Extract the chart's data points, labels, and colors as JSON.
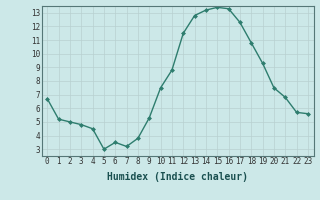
{
  "x": [
    0,
    1,
    2,
    3,
    4,
    5,
    6,
    7,
    8,
    9,
    10,
    11,
    12,
    13,
    14,
    15,
    16,
    17,
    18,
    19,
    20,
    21,
    22,
    23
  ],
  "y": [
    6.7,
    5.2,
    5.0,
    4.8,
    4.5,
    3.0,
    3.5,
    3.2,
    3.8,
    5.3,
    7.5,
    8.8,
    11.5,
    12.8,
    13.2,
    13.4,
    13.3,
    12.3,
    10.8,
    9.3,
    7.5,
    6.8,
    5.7,
    5.6
  ],
  "xlabel": "Humidex (Indice chaleur)",
  "xlim": [
    -0.5,
    23.5
  ],
  "ylim": [
    2.5,
    13.5
  ],
  "yticks": [
    3,
    4,
    5,
    6,
    7,
    8,
    9,
    10,
    11,
    12,
    13
  ],
  "xticks": [
    0,
    1,
    2,
    3,
    4,
    5,
    6,
    7,
    8,
    9,
    10,
    11,
    12,
    13,
    14,
    15,
    16,
    17,
    18,
    19,
    20,
    21,
    22,
    23
  ],
  "xtick_labels": [
    "0",
    "1",
    "2",
    "3",
    "4",
    "5",
    "6",
    "7",
    "8",
    "9",
    "10",
    "11",
    "12",
    "13",
    "14",
    "15",
    "16",
    "17",
    "18",
    "19",
    "20",
    "21",
    "22",
    "23"
  ],
  "line_color": "#2e7d6e",
  "marker_color": "#2e7d6e",
  "bg_color": "#cce8e8",
  "grid_color": "#b8d0d0",
  "xlabel_color": "#1a5050",
  "xlabel_fontsize": 7,
  "tick_fontsize": 5.5
}
